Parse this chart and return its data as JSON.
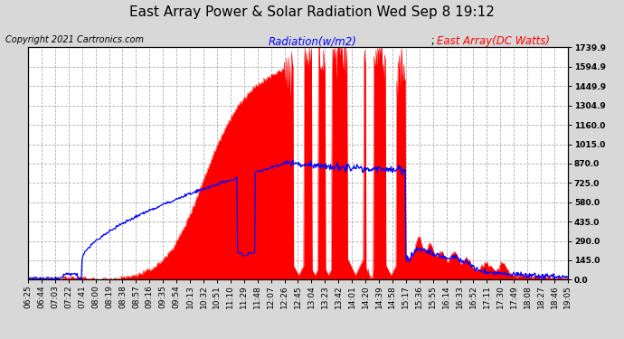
{
  "title": "East Array Power & Solar Radiation Wed Sep 8 19:12",
  "copyright": "Copyright 2021 Cartronics.com",
  "legend_radiation": "Radiation(w/m2)",
  "legend_east_array": "East Array(DC Watts)",
  "ylabel_right_ticks": [
    0.0,
    145.0,
    290.0,
    435.0,
    580.0,
    725.0,
    870.0,
    1015.0,
    1160.0,
    1304.9,
    1449.9,
    1594.9,
    1739.9
  ],
  "ymax": 1739.9,
  "bg_color": "#d8d8d8",
  "plot_bg_color": "#ffffff",
  "radiation_color": "#0000ff",
  "array_color": "#ff0000",
  "grid_color": "#b0b0b0",
  "title_fontsize": 11,
  "copyright_fontsize": 7,
  "tick_fontsize": 6.5,
  "legend_fontsize": 8.5,
  "x_tick_labels": [
    "06:25",
    "06:44",
    "07:03",
    "07:22",
    "07:41",
    "08:00",
    "08:19",
    "08:38",
    "08:57",
    "09:16",
    "09:35",
    "09:54",
    "10:13",
    "10:32",
    "10:51",
    "11:10",
    "11:29",
    "11:48",
    "12:07",
    "12:26",
    "12:45",
    "13:04",
    "13:23",
    "13:42",
    "14:01",
    "14:20",
    "14:39",
    "14:58",
    "15:17",
    "15:36",
    "15:55",
    "16:14",
    "16:33",
    "16:52",
    "17:11",
    "17:30",
    "17:49",
    "18:08",
    "18:27",
    "18:46",
    "19:05"
  ]
}
